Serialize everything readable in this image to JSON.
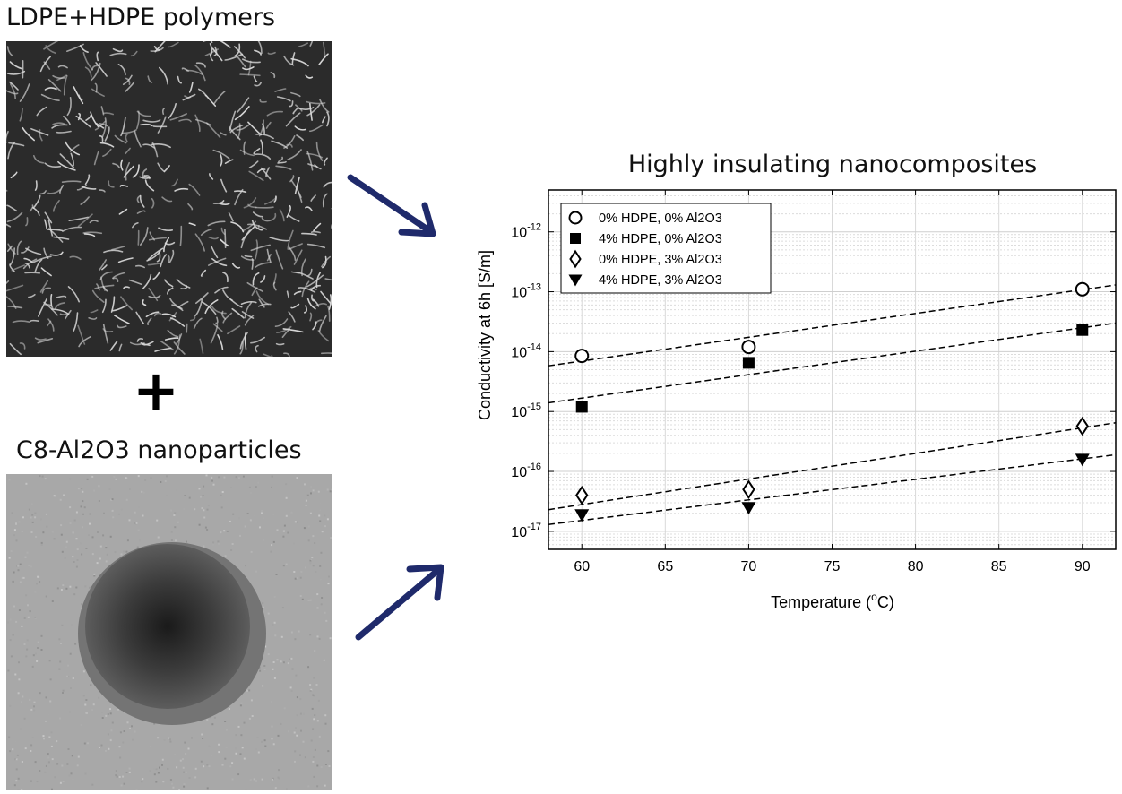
{
  "panels": {
    "polymer_label": "LDPE+HDPE polymers",
    "plus_sign": "+",
    "nanoparticle_label": "C8-Al2O3 nanoparticles"
  },
  "colors": {
    "arrow": "#1f2a6b",
    "sem_background": "#2b2b2b",
    "tem_background": "#a8a8a8"
  },
  "chart_data": {
    "type": "scatter",
    "title": "Highly insulating nanocomposites",
    "xlabel": "Temperature (°C)",
    "xlabel_parts": {
      "before": "Temperature (",
      "sup": "o",
      "after": "C)"
    },
    "ylabel": "Conductivity at 6h [S/m]",
    "xlim": [
      58,
      92
    ],
    "ylim": [
      5e-18,
      5e-12
    ],
    "yscale": "log",
    "xticks": [
      60,
      65,
      70,
      75,
      80,
      85,
      90
    ],
    "yticks": [
      {
        "value": 1e-17,
        "exp": "-17"
      },
      {
        "value": 1e-16,
        "exp": "-16"
      },
      {
        "value": 1e-15,
        "exp": "-15"
      },
      {
        "value": 1e-14,
        "exp": "-14"
      },
      {
        "value": 1e-13,
        "exp": "-13"
      },
      {
        "value": 1e-12,
        "exp": "-12"
      }
    ],
    "grid": true,
    "legend_position": "top-left",
    "series": [
      {
        "name": "0% HDPE, 0% Al2O3",
        "marker": "circle-open",
        "x": [
          60,
          70,
          90
        ],
        "y": [
          8.5e-15,
          1.2e-14,
          1.1e-13
        ],
        "fit": {
          "x": [
            58,
            92
          ],
          "y": [
            5.8e-15,
            1.3e-13
          ]
        }
      },
      {
        "name": "4% HDPE, 0% Al2O3",
        "marker": "square-filled",
        "x": [
          60,
          70,
          90
        ],
        "y": [
          1.2e-15,
          6.5e-15,
          2.3e-14
        ],
        "fit": {
          "x": [
            58,
            92
          ],
          "y": [
            1.4e-15,
            3e-14
          ]
        }
      },
      {
        "name": "0% HDPE, 3% Al2O3",
        "marker": "diamond-open",
        "x": [
          60,
          70,
          90
        ],
        "y": [
          4e-17,
          5e-17,
          5.7e-16
        ],
        "fit": {
          "x": [
            58,
            92
          ],
          "y": [
            2.3e-17,
            6.5e-16
          ]
        }
      },
      {
        "name": "4% HDPE, 3% Al2O3",
        "marker": "triangle-down-filled",
        "x": [
          60,
          70,
          90
        ],
        "y": [
          1.9e-17,
          2.5e-17,
          1.6e-16
        ],
        "fit": {
          "x": [
            58,
            92
          ],
          "y": [
            1.3e-17,
            1.9e-16
          ]
        }
      }
    ]
  }
}
